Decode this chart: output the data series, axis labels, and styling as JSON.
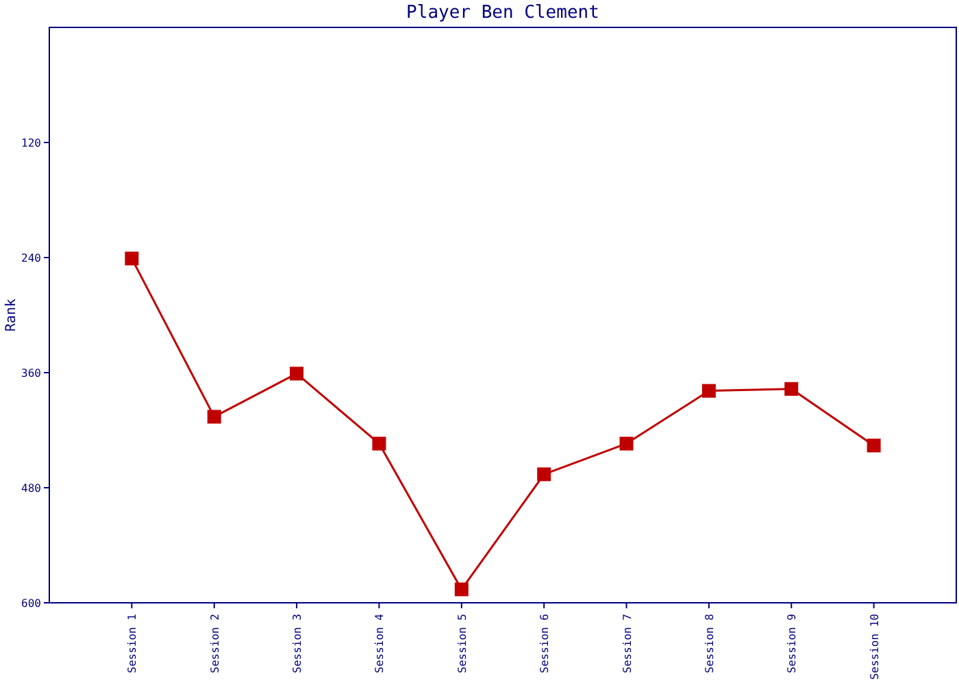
{
  "chart_data": {
    "type": "line",
    "title": "Player Ben Clement",
    "ylabel": "Rank",
    "categories": [
      "Session 1",
      "Session 2",
      "Session 3",
      "Session 4",
      "Session 5",
      "Session 6",
      "Session 7",
      "Session 8",
      "Session 9",
      "Session 10"
    ],
    "series": [
      {
        "color": "#c00000",
        "values": [
          241,
          406,
          361,
          434,
          586,
          466,
          434,
          379,
          377,
          436
        ]
      }
    ],
    "ylim": [
      600,
      0
    ],
    "yticks": [
      120,
      240,
      360,
      480,
      600
    ],
    "marker": "square",
    "line_style": "solid"
  }
}
